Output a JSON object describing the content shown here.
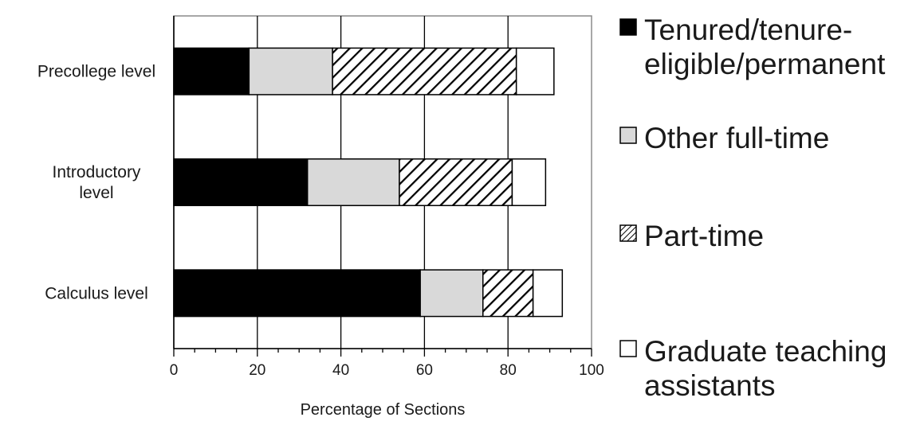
{
  "chart_data": {
    "type": "bar",
    "orientation": "horizontal",
    "stacked": true,
    "categories": [
      "Precollege level",
      "Introductory level",
      "Calculus level"
    ],
    "category_label_lines": [
      [
        "Precollege level"
      ],
      [
        "Introductory",
        "level"
      ],
      [
        "Calculus level"
      ]
    ],
    "series": [
      {
        "name": "Tenured/tenure-eligible/permanent",
        "legend_lines": [
          "Tenured/tenure-",
          "eligible/permanent"
        ],
        "values": [
          18,
          32,
          59
        ],
        "fill": "#000000",
        "pattern": "solid"
      },
      {
        "name": "Other full-time",
        "legend_lines": [
          "Other full-time"
        ],
        "values": [
          20,
          22,
          15
        ],
        "fill": "#d9d9d9",
        "pattern": "solid"
      },
      {
        "name": "Part-time",
        "legend_lines": [
          "Part-time"
        ],
        "values": [
          44,
          27,
          12
        ],
        "fill": "#ffffff",
        "pattern": "diagonal-hatch"
      },
      {
        "name": "Graduate teaching assistants",
        "legend_lines": [
          "Graduate teaching",
          "assistants"
        ],
        "values": [
          9,
          8,
          7
        ],
        "fill": "#ffffff",
        "pattern": "solid"
      }
    ],
    "xlabel": "Percentage of Sections",
    "ylabel": "",
    "xlim": [
      0,
      100
    ],
    "xticks": [
      "0",
      "20",
      "40",
      "60",
      "80",
      "100"
    ],
    "grid": "vertical",
    "legend": "right"
  }
}
